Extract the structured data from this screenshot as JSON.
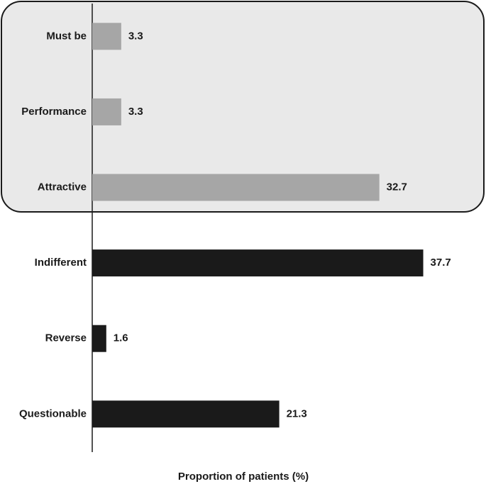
{
  "chart_data": {
    "type": "hbar",
    "categories": [
      "Must be",
      "Performance",
      "Attractive",
      "Indifferent",
      "Reverse",
      "Questionable"
    ],
    "values": [
      3.3,
      3.3,
      32.7,
      37.7,
      1.6,
      21.3
    ],
    "colors": [
      "#a6a6a6",
      "#a6a6a6",
      "#a6a6a6",
      "#1a1a1a",
      "#1a1a1a",
      "#1a1a1a"
    ],
    "xlim": [
      0,
      40
    ],
    "xlabel": "Proportion of patients (%)"
  }
}
